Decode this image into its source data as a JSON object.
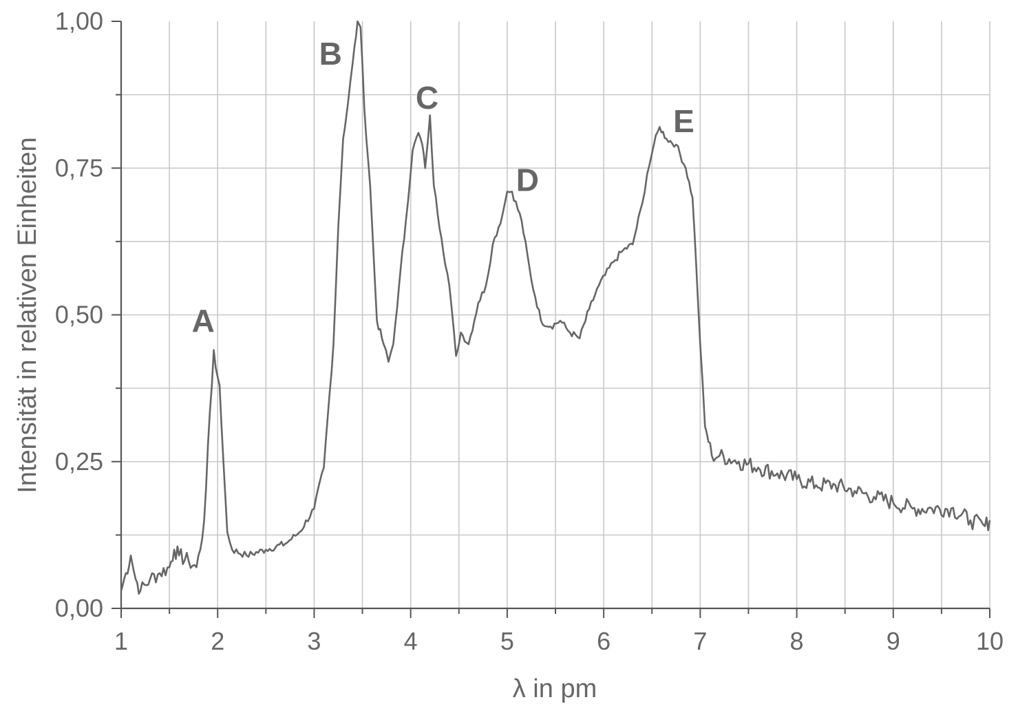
{
  "chart_data": {
    "type": "line",
    "xlabel": "λ in pm",
    "ylabel": "Intensität in relativen Einheiten",
    "xlim": [
      1,
      10
    ],
    "ylim": [
      0,
      1
    ],
    "x_ticks": [
      1,
      2,
      3,
      4,
      5,
      6,
      7,
      8,
      9,
      10
    ],
    "x_tick_labels": [
      "1",
      "2",
      "3",
      "4",
      "5",
      "6",
      "7",
      "8",
      "9",
      "10"
    ],
    "y_ticks": [
      0,
      0.25,
      0.5,
      0.75,
      1.0
    ],
    "y_tick_labels": [
      "0,00",
      "0,25",
      "0,50",
      "0,75",
      "1,00"
    ],
    "grid": true,
    "line_color": "#666666",
    "grid_color": "#c8c8c8",
    "annotations": [
      {
        "text": "A",
        "x": 1.85,
        "y": 0.49
      },
      {
        "text": "B",
        "x": 3.17,
        "y": 0.945
      },
      {
        "text": "C",
        "x": 4.17,
        "y": 0.87
      },
      {
        "text": "D",
        "x": 5.21,
        "y": 0.73
      },
      {
        "text": "E",
        "x": 6.83,
        "y": 0.83
      }
    ],
    "series": [
      {
        "points": [
          [
            1.0,
            0.03
          ],
          [
            1.05,
            0.06
          ],
          [
            1.1,
            0.09
          ],
          [
            1.15,
            0.05
          ],
          [
            1.2,
            0.03
          ],
          [
            1.3,
            0.05
          ],
          [
            1.4,
            0.06
          ],
          [
            1.5,
            0.07
          ],
          [
            1.55,
            0.1
          ],
          [
            1.6,
            0.09
          ],
          [
            1.7,
            0.08
          ],
          [
            1.78,
            0.07
          ],
          [
            1.82,
            0.1
          ],
          [
            1.86,
            0.15
          ],
          [
            1.9,
            0.28
          ],
          [
            1.94,
            0.38
          ],
          [
            1.96,
            0.44
          ],
          [
            1.98,
            0.41
          ],
          [
            2.02,
            0.38
          ],
          [
            2.06,
            0.25
          ],
          [
            2.1,
            0.13
          ],
          [
            2.15,
            0.1
          ],
          [
            2.3,
            0.09
          ],
          [
            2.5,
            0.1
          ],
          [
            2.7,
            0.11
          ],
          [
            2.85,
            0.13
          ],
          [
            3.0,
            0.17
          ],
          [
            3.1,
            0.24
          ],
          [
            3.2,
            0.45
          ],
          [
            3.25,
            0.65
          ],
          [
            3.3,
            0.8
          ],
          [
            3.35,
            0.86
          ],
          [
            3.4,
            0.93
          ],
          [
            3.45,
            1.0
          ],
          [
            3.48,
            0.99
          ],
          [
            3.52,
            0.85
          ],
          [
            3.58,
            0.72
          ],
          [
            3.65,
            0.49
          ],
          [
            3.72,
            0.45
          ],
          [
            3.77,
            0.42
          ],
          [
            3.82,
            0.45
          ],
          [
            3.88,
            0.55
          ],
          [
            3.95,
            0.66
          ],
          [
            4.02,
            0.78
          ],
          [
            4.08,
            0.81
          ],
          [
            4.12,
            0.79
          ],
          [
            4.15,
            0.75
          ],
          [
            4.18,
            0.8
          ],
          [
            4.2,
            0.84
          ],
          [
            4.24,
            0.72
          ],
          [
            4.32,
            0.63
          ],
          [
            4.4,
            0.55
          ],
          [
            4.47,
            0.43
          ],
          [
            4.52,
            0.47
          ],
          [
            4.6,
            0.45
          ],
          [
            4.7,
            0.52
          ],
          [
            4.78,
            0.55
          ],
          [
            4.85,
            0.62
          ],
          [
            4.95,
            0.67
          ],
          [
            5.0,
            0.71
          ],
          [
            5.05,
            0.71
          ],
          [
            5.15,
            0.66
          ],
          [
            5.25,
            0.56
          ],
          [
            5.35,
            0.49
          ],
          [
            5.45,
            0.48
          ],
          [
            5.55,
            0.49
          ],
          [
            5.65,
            0.47
          ],
          [
            5.75,
            0.46
          ],
          [
            5.85,
            0.51
          ],
          [
            5.95,
            0.55
          ],
          [
            6.1,
            0.59
          ],
          [
            6.2,
            0.61
          ],
          [
            6.3,
            0.62
          ],
          [
            6.4,
            0.69
          ],
          [
            6.45,
            0.74
          ],
          [
            6.52,
            0.79
          ],
          [
            6.58,
            0.82
          ],
          [
            6.65,
            0.8
          ],
          [
            6.75,
            0.79
          ],
          [
            6.85,
            0.75
          ],
          [
            6.92,
            0.7
          ],
          [
            6.96,
            0.58
          ],
          [
            7.0,
            0.45
          ],
          [
            7.05,
            0.31
          ],
          [
            7.12,
            0.26
          ],
          [
            7.2,
            0.26
          ],
          [
            7.4,
            0.25
          ],
          [
            7.6,
            0.24
          ],
          [
            7.8,
            0.23
          ],
          [
            8.0,
            0.22
          ],
          [
            8.2,
            0.21
          ],
          [
            8.4,
            0.21
          ],
          [
            8.6,
            0.2
          ],
          [
            8.8,
            0.19
          ],
          [
            9.0,
            0.18
          ],
          [
            9.2,
            0.17
          ],
          [
            9.4,
            0.17
          ],
          [
            9.6,
            0.17
          ],
          [
            9.8,
            0.15
          ],
          [
            9.95,
            0.14
          ],
          [
            10.0,
            0.15
          ]
        ]
      }
    ]
  }
}
